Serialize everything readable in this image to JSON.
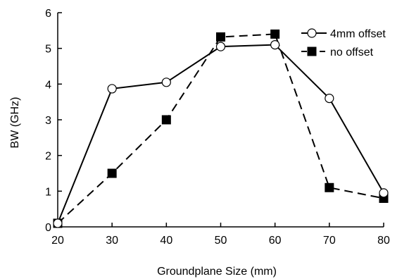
{
  "chart_data": {
    "type": "line",
    "title": "",
    "xlabel": "Groundplane Size (mm)",
    "ylabel": "BW (GHz)",
    "xlim": [
      20,
      80
    ],
    "ylim": [
      0,
      6
    ],
    "xticks": [
      20,
      30,
      40,
      50,
      60,
      70,
      80
    ],
    "yticks": [
      0,
      1,
      2,
      3,
      4,
      5,
      6
    ],
    "grid": false,
    "legend_position": "top-right",
    "series": [
      {
        "name": "4mm offset",
        "marker": "open-circle",
        "line_style": "solid",
        "color": "#000000",
        "x": [
          20,
          30,
          40,
          50,
          60,
          70,
          80
        ],
        "y": [
          0.1,
          3.87,
          4.05,
          5.05,
          5.1,
          3.6,
          0.95
        ]
      },
      {
        "name": "no offset",
        "marker": "filled-square",
        "line_style": "dashed",
        "color": "#000000",
        "x": [
          20,
          30,
          40,
          50,
          60,
          70,
          80
        ],
        "y": [
          0.1,
          1.5,
          3.0,
          5.32,
          5.4,
          1.1,
          0.8
        ]
      }
    ]
  }
}
